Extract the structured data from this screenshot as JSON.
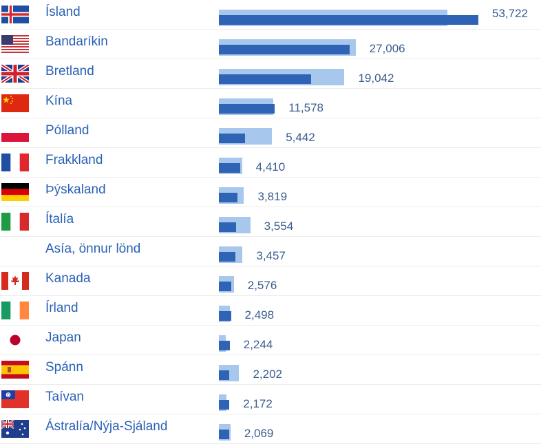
{
  "chart_data": {
    "type": "bar",
    "title": "",
    "xlabel": "",
    "ylabel": "",
    "categories": [
      "Ísland",
      "Bandaríkin",
      "Bretland",
      "Kína",
      "Pólland",
      "Frakkland",
      "Þýskaland",
      "Ítalía",
      "Asía, önnur lönd",
      "Kanada",
      "Írland",
      "Japan",
      "Spánn",
      "Taívan",
      "Ástralía/Nýja-Sjáland"
    ],
    "series": [
      {
        "values": [
          53722,
          27006,
          19042,
          11578,
          5442,
          4410,
          3819,
          3554,
          3457,
          2576,
          2498,
          2244,
          2202,
          2172,
          2069
        ]
      },
      {
        "values": [
          47300,
          28300,
          26000,
          11300,
          11000,
          4800,
          5200,
          6500,
          4900,
          3100,
          2300,
          1400,
          4200,
          1600,
          2400
        ]
      }
    ],
    "xlim": [
      0,
      55000
    ],
    "colors": {
      "current": "#2f63b6",
      "previous": "#a8c7ec",
      "label": "#2a62b5"
    },
    "flags": [
      "iceland-flag",
      "usa-flag",
      "uk-flag",
      "china-flag",
      "poland-flag",
      "france-flag",
      "germany-flag",
      "italy-flag",
      "",
      "canada-flag",
      "ireland-flag",
      "japan-flag",
      "spain-flag",
      "taiwan-flag",
      "australia-flag"
    ]
  }
}
